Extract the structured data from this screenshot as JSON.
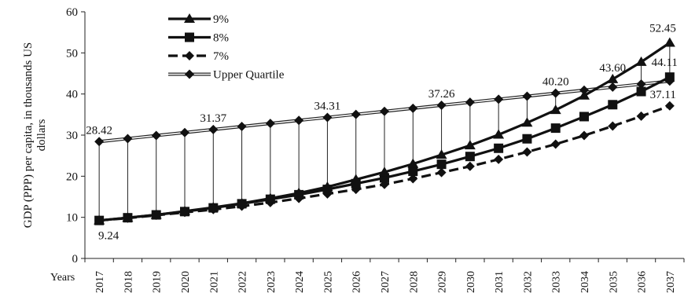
{
  "chart_data": {
    "type": "line",
    "ylabel_lines": [
      "GDP (PPP) per capita, in thousands US",
      "dollars"
    ],
    "x_axis_title": "Years",
    "ylim": [
      0,
      60
    ],
    "y_ticks": [
      0,
      10,
      20,
      30,
      40,
      50,
      60
    ],
    "categories": [
      "2017",
      "2018",
      "2019",
      "2020",
      "2021",
      "2022",
      "2023",
      "2024",
      "2025",
      "2026",
      "2027",
      "2028",
      "2029",
      "2030",
      "2031",
      "2032",
      "2033",
      "2034",
      "2035",
      "2036",
      "2037"
    ],
    "grid": false,
    "legend_position": "top-left",
    "series": [
      {
        "name": "9%",
        "marker": "triangle",
        "dash": false,
        "values": [
          9.24,
          9.9,
          10.6,
          11.5,
          12.4,
          13.4,
          14.6,
          15.9,
          17.4,
          19.2,
          21.0,
          23.0,
          25.2,
          27.5,
          30.1,
          33.0,
          36.1,
          39.6,
          43.6,
          47.8,
          52.45
        ]
      },
      {
        "name": "8%",
        "marker": "square",
        "dash": false,
        "values": [
          9.24,
          9.9,
          10.6,
          11.4,
          12.3,
          13.3,
          14.4,
          15.5,
          16.8,
          18.2,
          19.6,
          21.2,
          22.9,
          24.8,
          26.8,
          29.1,
          31.7,
          34.5,
          37.4,
          40.6,
          44.11
        ]
      },
      {
        "name": "7%",
        "marker": "diamond",
        "dash": true,
        "values": [
          9.24,
          9.8,
          10.5,
          11.2,
          11.9,
          12.7,
          13.6,
          14.6,
          15.7,
          16.8,
          18.0,
          19.4,
          20.9,
          22.4,
          24.1,
          25.9,
          27.8,
          29.9,
          32.2,
          34.6,
          37.11
        ]
      },
      {
        "name": "Upper  Quartile",
        "marker": "diamond",
        "dash": false,
        "double": true,
        "values": [
          28.42,
          29.15,
          29.9,
          30.63,
          31.37,
          32.1,
          32.84,
          33.58,
          34.31,
          35.05,
          35.78,
          36.52,
          37.26,
          37.99,
          38.73,
          39.46,
          40.2,
          40.93,
          41.67,
          42.41,
          43.14
        ]
      }
    ],
    "data_labels": [
      {
        "text": "28.42",
        "x": "2017",
        "value": 28.42,
        "series": "Upper  Quartile",
        "pos": "above"
      },
      {
        "text": "31.37",
        "x": "2021",
        "value": 31.37,
        "series": "Upper  Quartile",
        "pos": "above"
      },
      {
        "text": "34.31",
        "x": "2025",
        "value": 34.31,
        "series": "Upper  Quartile",
        "pos": "above"
      },
      {
        "text": "37.26",
        "x": "2029",
        "value": 37.26,
        "series": "Upper  Quartile",
        "pos": "above"
      },
      {
        "text": "40.20",
        "x": "2033",
        "value": 40.2,
        "series": "Upper  Quartile",
        "pos": "above"
      },
      {
        "text": "43.60",
        "x": "2035",
        "value": 43.6,
        "series": "9%",
        "pos": "above"
      },
      {
        "text": "52.45",
        "x": "2037",
        "value": 52.45,
        "series": "9%",
        "pos": "above"
      },
      {
        "text": "44.11",
        "x": "2037",
        "value": 44.11,
        "series": "8%",
        "pos": "above"
      },
      {
        "text": "37.11",
        "x": "2037",
        "value": 37.11,
        "series": "7%",
        "pos": "above"
      },
      {
        "text": "9.24",
        "x": "2017",
        "value": 9.24,
        "series": "9%",
        "pos": "below"
      }
    ],
    "drop_lines": {
      "from_series": "Upper  Quartile",
      "to_series": "9%"
    }
  }
}
